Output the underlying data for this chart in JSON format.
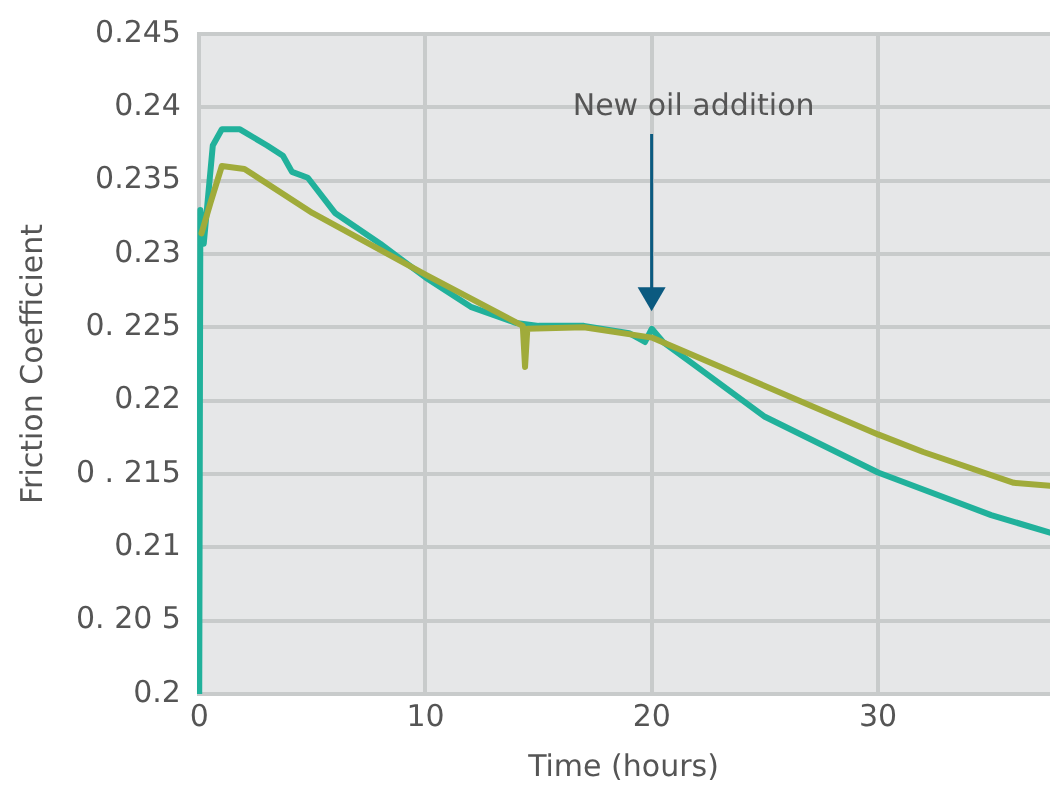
{
  "chart_data": {
    "type": "line",
    "xlabel": "Time (hours)",
    "ylabel": "Friction Coefficient",
    "xlim": [
      -0.1,
      37.6
    ],
    "xticks": [
      0,
      10,
      20,
      30
    ],
    "ylim": [
      0.2,
      0.245
    ],
    "yticks": [
      0.2,
      {
        "value": 0.205,
        "label": "0. 20 5"
      },
      0.21,
      {
        "value": 0.215,
        "label": "0 . 215"
      },
      0.22,
      {
        "value": 0.225,
        "label": "0. 225"
      },
      0.23,
      0.235,
      0.24,
      0.245
    ],
    "grid": true,
    "legend": false,
    "marker": "none",
    "line_style": "solid",
    "annotations": [
      "New oil addition"
    ],
    "series": [
      {
        "color": "#a0ab3a",
        "x": [
          0.1,
          0.5,
          1,
          2,
          5,
          10,
          14.3,
          14.4,
          14.5,
          17,
          20,
          25,
          30,
          32,
          36,
          37.6
        ],
        "values": [
          0.2314,
          0.2335,
          0.236,
          0.2358,
          0.2328,
          0.2286,
          0.2251,
          0.2223,
          0.2249,
          0.225,
          0.2243,
          0.221,
          0.2177,
          0.2165,
          0.2144,
          0.2142
        ]
      },
      {
        "color": "#21b19b",
        "x": [
          0,
          0.05,
          0.2,
          0.6,
          1,
          1.8,
          3,
          3.7,
          4.1,
          4.8,
          6,
          8,
          10,
          12,
          14,
          15,
          17,
          19,
          19.7,
          20,
          20.5,
          22,
          25,
          30,
          35,
          37.6
        ],
        "values": [
          0.2,
          0.233,
          0.2307,
          0.2374,
          0.2385,
          0.2385,
          0.2374,
          0.2367,
          0.2356,
          0.2352,
          0.2328,
          0.2307,
          0.2284,
          0.2264,
          0.2253,
          0.2251,
          0.2251,
          0.2246,
          0.224,
          0.2249,
          0.224,
          0.2223,
          0.2189,
          0.2151,
          0.2122,
          0.211
        ]
      }
    ]
  }
}
